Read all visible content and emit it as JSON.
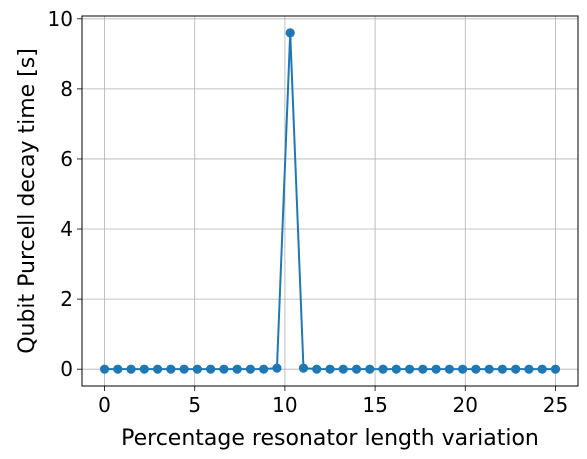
{
  "chart_data": {
    "type": "line",
    "xlabel": "Percentage resonator length variation",
    "ylabel": "Qubit Purcell decay time [s]",
    "xlim": [
      -1.25,
      26.25
    ],
    "ylim": [
      -0.48,
      10.08
    ],
    "x_ticks": [
      0,
      5,
      10,
      15,
      20,
      25
    ],
    "x_tick_labels": [
      "0",
      "5",
      "10",
      "15",
      "20",
      "25"
    ],
    "y_ticks": [
      0,
      2,
      4,
      6,
      8,
      10
    ],
    "y_tick_labels": [
      "0",
      "2",
      "4",
      "6",
      "8",
      "10"
    ],
    "grid": true,
    "series": [
      {
        "marker": "circle",
        "color": "#1f77b4",
        "x": [
          0,
          0.735,
          1.471,
          2.206,
          2.941,
          3.676,
          4.412,
          5.147,
          5.882,
          6.618,
          7.353,
          8.088,
          8.824,
          9.559,
          10.294,
          11.029,
          11.765,
          12.5,
          13.235,
          13.971,
          14.706,
          15.441,
          16.176,
          16.912,
          17.647,
          18.382,
          19.118,
          19.853,
          20.588,
          21.324,
          22.059,
          22.794,
          23.529,
          24.265,
          25
        ],
        "y": [
          0,
          0,
          0,
          0,
          0,
          0,
          0,
          0,
          0,
          0,
          0,
          0,
          0,
          0.03,
          9.6,
          0.03,
          0,
          0,
          0,
          0,
          0,
          0,
          0,
          0,
          0,
          0,
          0,
          0,
          0,
          0,
          0,
          0,
          0,
          0,
          0
        ]
      }
    ]
  }
}
